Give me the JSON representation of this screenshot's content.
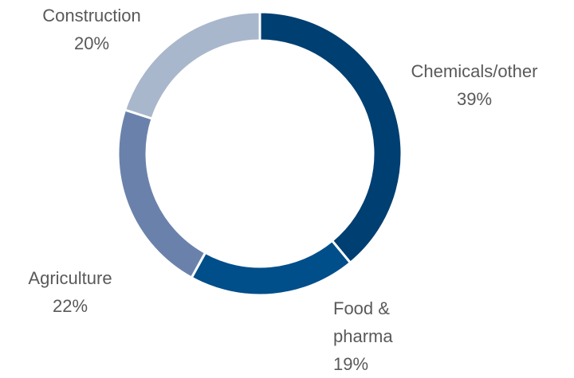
{
  "chart_data": {
    "type": "donut",
    "categories": [
      "Chemicals/other",
      "Food & pharma",
      "Agriculture",
      "Construction"
    ],
    "values": [
      39,
      19,
      22,
      20
    ],
    "value_labels": [
      "39%",
      "19%",
      "22%",
      "20%"
    ],
    "colors": [
      "#003f72",
      "#004e8a",
      "#6a82ab",
      "#a9b7cc"
    ]
  }
}
